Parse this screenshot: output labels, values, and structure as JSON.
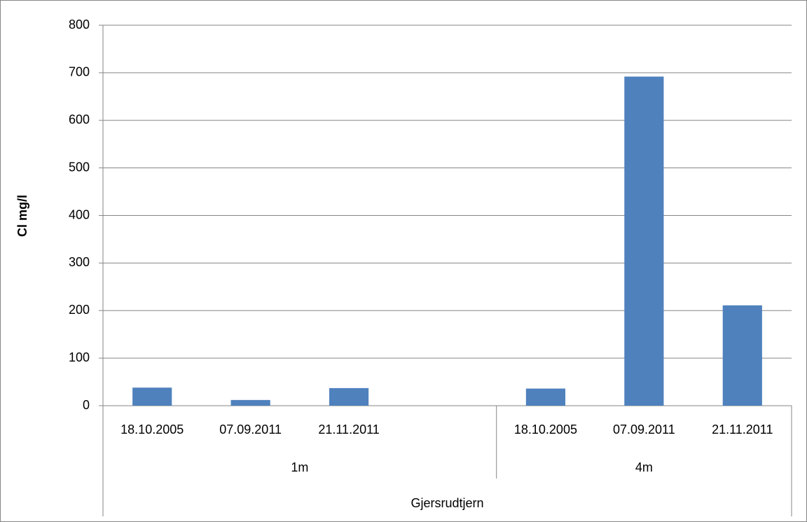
{
  "chart_data": {
    "type": "bar",
    "y_label": "Cl mg/l",
    "color": "#4f81bd",
    "groups": [
      {
        "name": "1m",
        "categories": [
          "18.10.2005",
          "07.09.2011",
          "21.11.2011",
          null
        ],
        "values": [
          38,
          12,
          37,
          null
        ]
      },
      {
        "name": "4m",
        "categories": [
          "18.10.2005",
          "07.09.2011",
          "21.11.2011"
        ],
        "values": [
          36,
          692,
          211
        ]
      }
    ],
    "group_title": "Gjersrudtjern",
    "ylim": [
      0,
      800
    ],
    "yticks": [
      0,
      100,
      200,
      300,
      400,
      500,
      600,
      700,
      800
    ],
    "grid": true
  }
}
